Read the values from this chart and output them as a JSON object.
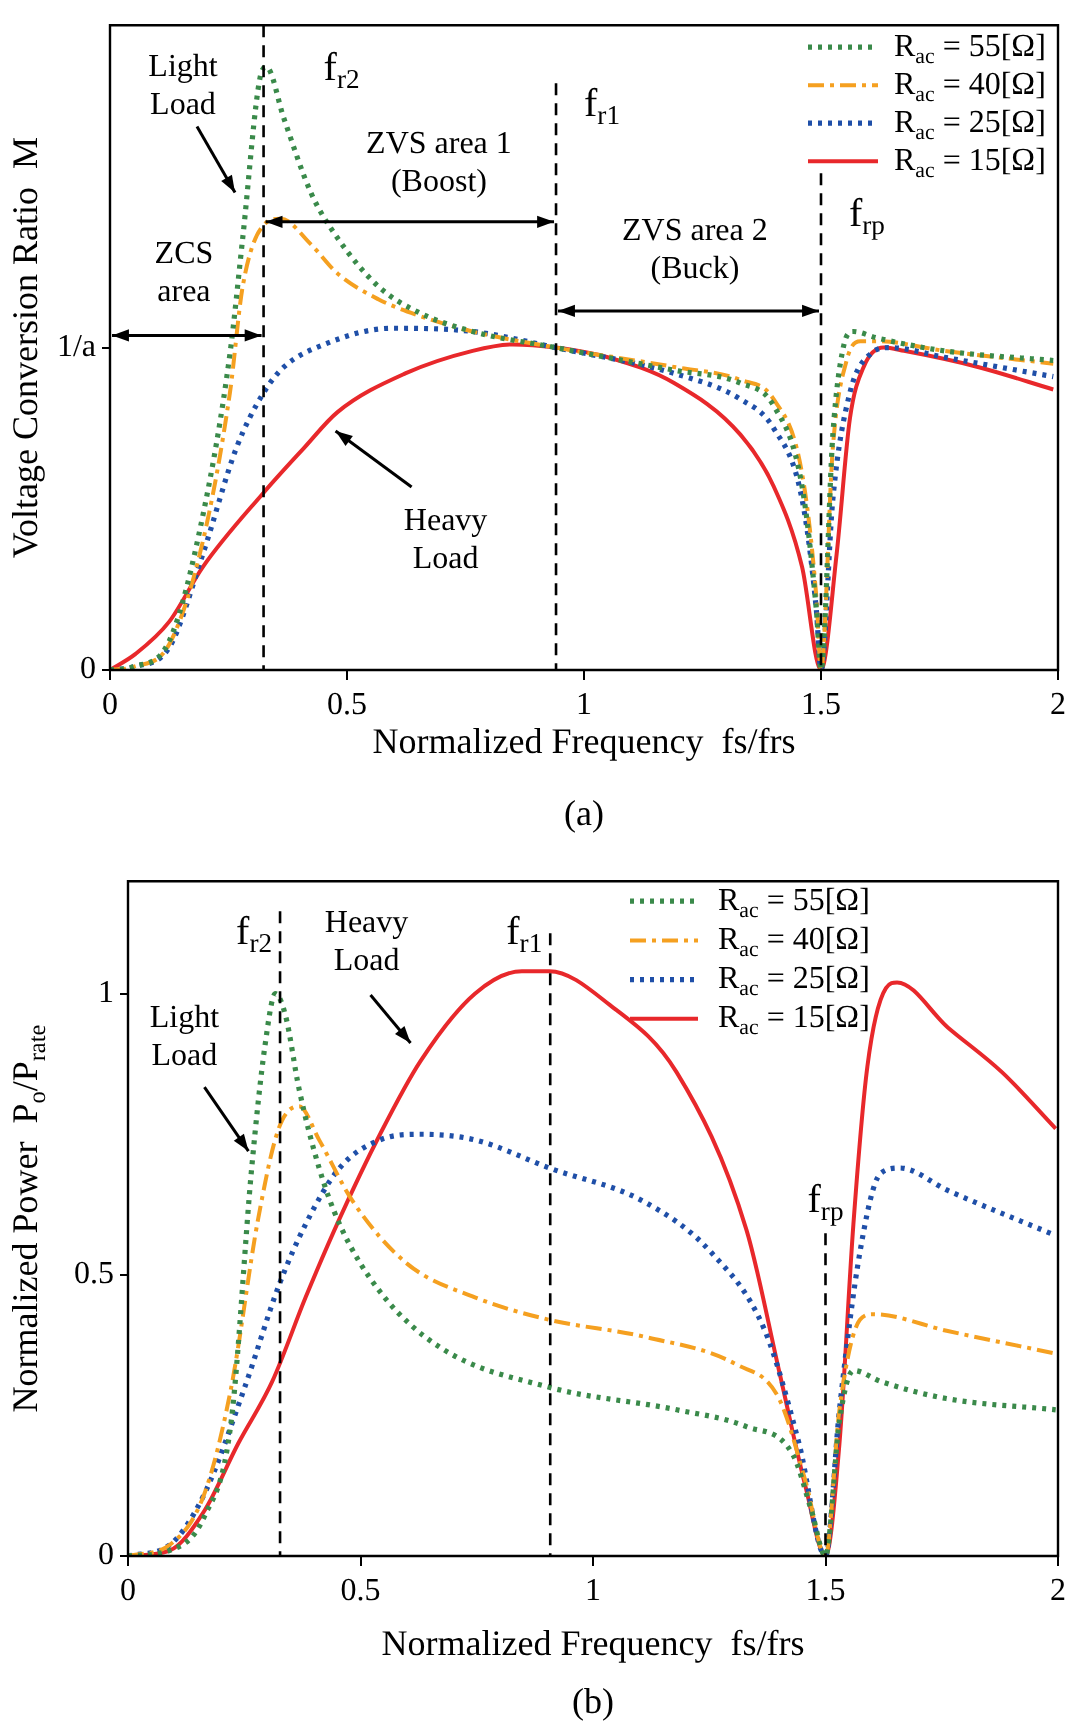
{
  "chart_data": [
    {
      "type": "line",
      "title": "(a)",
      "xlabel": "Normalized Frequency  fs/frs",
      "ylabel": "Voltage Conversion Ratio  M",
      "xlim": [
        0,
        2
      ],
      "xticks": [
        0,
        0.5,
        1,
        1.5,
        2
      ],
      "ylim": [
        0,
        2
      ],
      "yticks": [
        0,
        {
          "value": 1,
          "label": "1/a"
        }
      ],
      "grid": false,
      "legend": "top right",
      "marker": "none",
      "series": [
        {
          "name": "R$_{ac}$ = 55[Ω]",
          "color": "#3a8a4a",
          "line_style": "dotted",
          "x": [
            0,
            0.05,
            0.125,
            0.196,
            0.253,
            0.28,
            0.317,
            0.33,
            0.367,
            0.424,
            0.48,
            0.566,
            0.65,
            0.765,
            0.94,
            1.19,
            1.33,
            1.4,
            1.46,
            1.49,
            1.5,
            1.525,
            1.547,
            1.568,
            1.618,
            1.76,
            1.99
          ],
          "values": [
            0,
            0.01,
            0.09,
            0.48,
            0.98,
            1.34,
            1.84,
            1.87,
            1.71,
            1.48,
            1.34,
            1.19,
            1.11,
            1.05,
            1.0,
            0.93,
            0.89,
            0.82,
            0.57,
            0.19,
            0,
            0.73,
            1.0,
            1.05,
            1.03,
            0.99,
            0.96
          ]
        },
        {
          "name": "R$_{ac}$ = 40[Ω]",
          "color": "#f5a020",
          "line_style": "dashdot",
          "x": [
            0,
            0.05,
            0.125,
            0.196,
            0.253,
            0.28,
            0.324,
            0.36,
            0.424,
            0.48,
            0.566,
            0.65,
            0.765,
            0.94,
            1.19,
            1.33,
            1.4,
            1.46,
            1.49,
            1.5,
            1.525,
            1.554,
            1.583,
            1.618,
            1.76,
            1.99
          ],
          "values": [
            0,
            0.01,
            0.08,
            0.4,
            0.86,
            1.19,
            1.38,
            1.4,
            1.32,
            1.23,
            1.15,
            1.1,
            1.05,
            1.0,
            0.94,
            0.9,
            0.84,
            0.61,
            0.23,
            0,
            0.69,
            0.96,
            1.02,
            1.02,
            0.99,
            0.95
          ]
        },
        {
          "name": "R$_{ac}$ = 25[Ω]",
          "color": "#1f4fa8",
          "line_style": "dotted",
          "x": [
            0,
            0.05,
            0.125,
            0.196,
            0.267,
            0.324,
            0.367,
            0.452,
            0.594,
            0.765,
            0.94,
            1.19,
            1.33,
            1.4,
            1.46,
            1.49,
            1.5,
            1.525,
            1.561,
            1.604,
            1.646,
            1.76,
            1.99
          ],
          "values": [
            0,
            0.01,
            0.07,
            0.36,
            0.69,
            0.86,
            0.94,
            1.01,
            1.06,
            1.05,
            1.0,
            0.92,
            0.84,
            0.75,
            0.53,
            0.19,
            0,
            0.53,
            0.86,
            0.98,
            1.0,
            0.97,
            0.91
          ]
        },
        {
          "name": "R$_{ac}$ = 15[Ω]",
          "color": "#e8282b",
          "line_style": "solid",
          "x": [
            0,
            0.054,
            0.125,
            0.196,
            0.324,
            0.41,
            0.48,
            0.623,
            0.765,
            0.85,
            0.94,
            1.05,
            1.19,
            1.33,
            1.4,
            1.46,
            1.5,
            1.533,
            1.561,
            1.59,
            1.632,
            1.675,
            1.831,
            1.99
          ],
          "values": [
            0,
            0.05,
            0.15,
            0.32,
            0.55,
            0.69,
            0.8,
            0.92,
            0.99,
            1.01,
            1.0,
            0.97,
            0.89,
            0.73,
            0.57,
            0.32,
            0,
            0.36,
            0.78,
            0.94,
            1.0,
            0.99,
            0.94,
            0.87
          ]
        }
      ],
      "ref_lines": [
        {
          "axis": "x",
          "value": 0.324,
          "label": "f$_{r2}$",
          "line_style": "dashed",
          "color": "#000000"
        },
        {
          "axis": "x",
          "value": 0.941,
          "label": "f$_{r1}$",
          "line_style": "dashed",
          "color": "#000000"
        },
        {
          "axis": "x",
          "value": 1.5,
          "label": "f$_{rp}$",
          "line_style": "dashed",
          "color": "#000000"
        }
      ],
      "annotations": [
        "Light\nLoad",
        "ZVS area 1\n(Boost)",
        "ZCS\narea",
        "ZVS area 2\n(Buck)",
        "Heavy\nLoad"
      ]
    },
    {
      "type": "line",
      "title": "(b)",
      "xlabel": "Normalized Frequency  fs/frs",
      "ylabel": "Normalized Power  P$_{o}$/P$_{rate}$",
      "xlim": [
        0,
        2
      ],
      "xticks": [
        0,
        0.5,
        1,
        1.5,
        2
      ],
      "ylim": [
        0,
        1.2
      ],
      "yticks": [
        0,
        0.5,
        1
      ],
      "grid": false,
      "legend": "top right",
      "marker": "none",
      "series": [
        {
          "name": "R$_{ac}$ = 55[Ω]",
          "color": "#3a8a4a",
          "line_style": "dotted",
          "x": [
            0,
            0.09,
            0.164,
            0.222,
            0.266,
            0.295,
            0.317,
            0.339,
            0.368,
            0.411,
            0.455,
            0.542,
            0.673,
            0.906,
            1.18,
            1.33,
            1.43,
            1.47,
            1.5,
            1.53,
            1.56,
            1.62,
            1.76,
            1.995
          ],
          "values": [
            0,
            0.01,
            0.07,
            0.24,
            0.69,
            0.91,
            1.0,
            0.96,
            0.83,
            0.69,
            0.59,
            0.47,
            0.37,
            0.3,
            0.26,
            0.23,
            0.18,
            0.08,
            0,
            0.24,
            0.33,
            0.31,
            0.28,
            0.26
          ]
        },
        {
          "name": "R$_{ac}$ = 40[Ω]",
          "color": "#f5a020",
          "line_style": "dashdot",
          "x": [
            0,
            0.09,
            0.164,
            0.222,
            0.28,
            0.324,
            0.368,
            0.411,
            0.484,
            0.6,
            0.746,
            0.906,
            1.11,
            1.31,
            1.4,
            1.458,
            1.5,
            1.53,
            1.574,
            1.603,
            1.763,
            1.995
          ],
          "values": [
            0,
            0.02,
            0.11,
            0.3,
            0.6,
            0.76,
            0.8,
            0.74,
            0.63,
            0.52,
            0.46,
            0.42,
            0.39,
            0.34,
            0.28,
            0.13,
            0,
            0.26,
            0.42,
            0.43,
            0.4,
            0.36
          ]
        },
        {
          "name": "R$_{ac}$ = 25[Ω]",
          "color": "#1f4fa8",
          "line_style": "dotted",
          "x": [
            0,
            0.09,
            0.164,
            0.251,
            0.324,
            0.382,
            0.455,
            0.542,
            0.629,
            0.746,
            0.906,
            1.11,
            1.254,
            1.37,
            1.443,
            1.5,
            1.53,
            1.574,
            1.618,
            1.66,
            1.763,
            1.995
          ],
          "values": [
            0,
            0.02,
            0.11,
            0.3,
            0.48,
            0.59,
            0.69,
            0.74,
            0.75,
            0.74,
            0.69,
            0.63,
            0.54,
            0.4,
            0.2,
            0,
            0.26,
            0.54,
            0.68,
            0.69,
            0.65,
            0.57
          ]
        },
        {
          "name": "R$_{ac}$ = 15[Ω]",
          "color": "#e8282b",
          "line_style": "solid",
          "x": [
            0,
            0.09,
            0.164,
            0.237,
            0.31,
            0.382,
            0.455,
            0.542,
            0.629,
            0.746,
            0.847,
            0.906,
            1.036,
            1.18,
            1.33,
            1.4,
            1.458,
            1.5,
            1.53,
            1.56,
            1.59,
            1.63,
            1.654,
            1.763,
            1.88,
            1.995
          ],
          "values": [
            0,
            0.01,
            0.08,
            0.2,
            0.31,
            0.46,
            0.6,
            0.75,
            0.88,
            1.0,
            1.04,
            1.04,
            0.98,
            0.86,
            0.58,
            0.33,
            0.12,
            0,
            0.2,
            0.59,
            0.87,
            1.01,
            1.02,
            0.94,
            0.86,
            0.76
          ]
        }
      ],
      "ref_lines": [
        {
          "axis": "x",
          "value": 0.327,
          "label": "f$_{r2}$",
          "line_style": "dashed",
          "color": "#000000"
        },
        {
          "axis": "x",
          "value": 0.908,
          "label": "f$_{r1}$",
          "line_style": "dashed",
          "color": "#000000"
        },
        {
          "axis": "x",
          "value": 1.5,
          "label": "f$_{rp}$",
          "line_style": "dashed",
          "color": "#000000"
        }
      ],
      "annotations": [
        "Heavy\nLoad",
        {
          "text": "Light\nLoad",
          "x": 0.259,
          "y": 0.72
        }
      ]
    }
  ]
}
